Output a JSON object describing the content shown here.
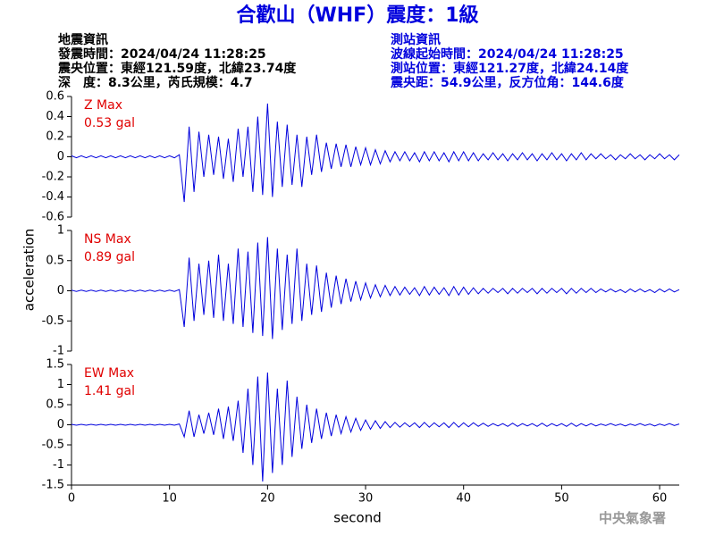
{
  "chart_data": {
    "type": "line",
    "title": "合歡山（WHF）震度：1級",
    "info_left": [
      "地震資訊",
      "發震時間：2024/04/24 11:28:25",
      "震央位置：東經121.59度，北緯23.74度",
      "深　度：8.3公里，芮氏規模：4.7"
    ],
    "info_right": [
      "測站資訊",
      "波線起始時間：2024/04/24 11:28:25",
      "測站位置：東經121.27度，北緯24.14度",
      "震央距：54.9公里，反方位角：144.6度"
    ],
    "xlabel": "second",
    "ylabel": "acceleration",
    "footer": "中央氣象署",
    "xlim": [
      0,
      62
    ],
    "xticks": [
      0,
      10,
      20,
      30,
      40,
      50,
      60
    ],
    "x": [
      0,
      0.5,
      1,
      1.5,
      2,
      2.5,
      3,
      3.5,
      4,
      4.5,
      5,
      5.5,
      6,
      6.5,
      7,
      7.5,
      8,
      8.5,
      9,
      9.5,
      10,
      10.5,
      11,
      11.5,
      12,
      12.5,
      13,
      13.5,
      14,
      14.5,
      15,
      15.5,
      16,
      16.5,
      17,
      17.5,
      18,
      18.5,
      19,
      19.5,
      20,
      20.5,
      21,
      21.5,
      22,
      22.5,
      23,
      23.5,
      24,
      24.5,
      25,
      25.5,
      26,
      26.5,
      27,
      27.5,
      28,
      28.5,
      29,
      29.5,
      30,
      30.5,
      31,
      31.5,
      32,
      32.5,
      33,
      33.5,
      34,
      34.5,
      35,
      35.5,
      36,
      36.5,
      37,
      37.5,
      38,
      38.5,
      39,
      39.5,
      40,
      40.5,
      41,
      41.5,
      42,
      42.5,
      43,
      43.5,
      44,
      44.5,
      45,
      45.5,
      46,
      46.5,
      47,
      47.5,
      48,
      48.5,
      49,
      49.5,
      50,
      50.5,
      51,
      51.5,
      52,
      52.5,
      53,
      53.5,
      54,
      54.5,
      55,
      55.5,
      56,
      56.5,
      57,
      57.5,
      58,
      58.5,
      59,
      59.5,
      60,
      60.5,
      61,
      61.5,
      62
    ],
    "series": [
      {
        "name": "Z Max",
        "peak": "0.53 gal",
        "color": "#0000dd",
        "ylim": [
          -0.6,
          0.6
        ],
        "yticks": [
          0.6,
          0.4,
          0.2,
          0,
          -0.2,
          -0.4,
          -0.6
        ],
        "values": [
          0.01,
          -0.01,
          0.01,
          -0.01,
          0.01,
          -0.01,
          0.01,
          -0.01,
          0.01,
          -0.01,
          0.01,
          -0.01,
          0.01,
          -0.01,
          0.01,
          -0.01,
          0.01,
          -0.01,
          0.01,
          -0.01,
          0.01,
          -0.01,
          0.02,
          -0.45,
          0.3,
          -0.35,
          0.25,
          -0.2,
          0.22,
          -0.18,
          0.2,
          -0.22,
          0.18,
          -0.25,
          0.28,
          -0.2,
          0.3,
          -0.35,
          0.4,
          -0.38,
          0.53,
          -0.4,
          0.35,
          -0.3,
          0.32,
          -0.28,
          0.22,
          -0.3,
          0.2,
          -0.18,
          0.22,
          -0.15,
          0.14,
          -0.12,
          0.13,
          -0.1,
          0.12,
          -0.1,
          0.1,
          -0.08,
          0.09,
          -0.08,
          0.07,
          -0.07,
          0.06,
          -0.05,
          0.05,
          -0.04,
          0.05,
          -0.04,
          0.04,
          -0.05,
          0.05,
          -0.04,
          0.05,
          -0.04,
          0.04,
          -0.05,
          0.05,
          -0.04,
          0.05,
          -0.04,
          0.04,
          -0.04,
          0.03,
          -0.03,
          0.04,
          -0.03,
          0.03,
          -0.04,
          0.03,
          -0.03,
          0.04,
          -0.03,
          0.03,
          -0.04,
          0.03,
          -0.03,
          0.04,
          -0.03,
          0.03,
          -0.04,
          0.03,
          -0.03,
          0.04,
          -0.03,
          0.03,
          -0.02,
          0.03,
          -0.02,
          0.02,
          -0.03,
          0.02,
          -0.02,
          0.03,
          -0.02,
          0.02,
          -0.03,
          0.02,
          -0.02,
          0.03,
          -0.02,
          0.02,
          -0.03,
          0.02
        ]
      },
      {
        "name": "NS Max",
        "peak": "0.89 gal",
        "color": "#0000dd",
        "ylim": [
          -1,
          1
        ],
        "yticks": [
          1,
          0.5,
          0,
          -0.5,
          -1
        ],
        "values": [
          0.01,
          -0.01,
          0.01,
          -0.01,
          0.01,
          -0.01,
          0.01,
          -0.01,
          0.01,
          -0.01,
          0.01,
          -0.01,
          0.01,
          -0.01,
          0.01,
          -0.01,
          0.01,
          -0.01,
          0.01,
          -0.01,
          0.01,
          -0.01,
          0.02,
          -0.6,
          0.55,
          -0.5,
          0.45,
          -0.4,
          0.5,
          -0.45,
          0.6,
          -0.5,
          0.45,
          -0.55,
          0.7,
          -0.6,
          0.65,
          -0.7,
          0.8,
          -0.75,
          0.89,
          -0.8,
          0.7,
          -0.65,
          0.6,
          -0.55,
          0.7,
          -0.5,
          0.45,
          -0.4,
          0.42,
          -0.35,
          0.3,
          -0.28,
          0.25,
          -0.22,
          0.2,
          -0.18,
          0.16,
          -0.15,
          0.13,
          -0.12,
          0.1,
          -0.1,
          0.09,
          -0.08,
          0.07,
          -0.07,
          0.06,
          -0.06,
          0.05,
          -0.08,
          0.07,
          -0.07,
          0.06,
          -0.06,
          0.05,
          -0.08,
          0.07,
          -0.07,
          0.06,
          -0.06,
          0.05,
          -0.05,
          0.04,
          -0.04,
          0.04,
          -0.03,
          0.04,
          -0.05,
          0.04,
          -0.04,
          0.04,
          -0.03,
          0.04,
          -0.05,
          0.04,
          -0.04,
          0.04,
          -0.03,
          0.04,
          -0.05,
          0.04,
          -0.04,
          0.04,
          -0.03,
          0.04,
          -0.03,
          0.03,
          -0.02,
          0.03,
          -0.02,
          0.02,
          -0.03,
          0.03,
          -0.02,
          0.03,
          -0.02,
          0.02,
          -0.03,
          0.03,
          -0.02,
          0.03,
          -0.02,
          0.02
        ]
      },
      {
        "name": "EW Max",
        "peak": "1.41 gal",
        "color": "#0000dd",
        "ylim": [
          -1.5,
          1.5
        ],
        "yticks": [
          1.5,
          1,
          0.5,
          0,
          -0.5,
          -1,
          -1.5
        ],
        "values": [
          0.01,
          -0.01,
          0.01,
          -0.01,
          0.01,
          -0.01,
          0.01,
          -0.01,
          0.01,
          -0.01,
          0.01,
          -0.01,
          0.01,
          -0.01,
          0.01,
          -0.01,
          0.01,
          -0.01,
          0.01,
          -0.01,
          0.01,
          -0.01,
          0.02,
          -0.3,
          0.35,
          -0.3,
          0.25,
          -0.22,
          0.3,
          -0.25,
          0.4,
          -0.35,
          0.45,
          -0.4,
          0.6,
          -0.7,
          0.9,
          -1.0,
          1.2,
          -1.41,
          1.3,
          -1.2,
          0.9,
          -1.0,
          1.1,
          -0.8,
          0.7,
          -0.6,
          0.5,
          -0.45,
          0.4,
          -0.35,
          0.3,
          -0.28,
          0.25,
          -0.22,
          0.2,
          -0.18,
          0.16,
          -0.14,
          0.12,
          -0.11,
          0.1,
          -0.09,
          0.08,
          -0.07,
          0.06,
          -0.06,
          0.05,
          -0.05,
          0.05,
          -0.07,
          0.06,
          -0.06,
          0.05,
          -0.05,
          0.05,
          -0.07,
          0.06,
          -0.06,
          0.05,
          -0.05,
          0.05,
          -0.04,
          0.04,
          -0.04,
          0.03,
          -0.03,
          0.03,
          -0.04,
          0.04,
          -0.04,
          0.03,
          -0.03,
          0.03,
          -0.04,
          0.04,
          -0.04,
          0.03,
          -0.03,
          0.03,
          -0.04,
          0.04,
          -0.04,
          0.03,
          -0.03,
          0.03,
          -0.03,
          0.02,
          -0.02,
          0.03,
          -0.02,
          0.02,
          -0.03,
          0.02,
          -0.02,
          0.03,
          -0.02,
          0.02,
          -0.03,
          0.02,
          -0.02,
          0.03,
          -0.02,
          0.02
        ]
      }
    ]
  }
}
